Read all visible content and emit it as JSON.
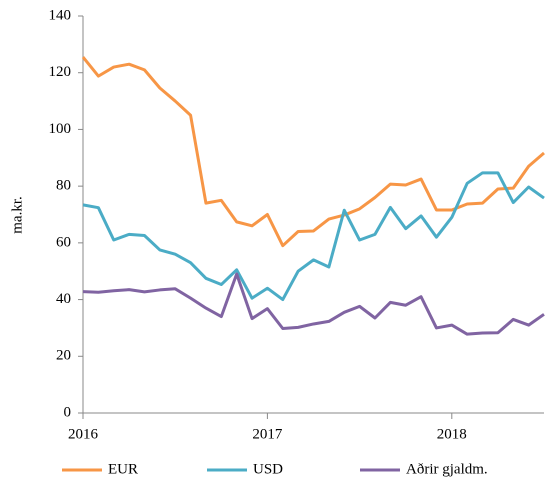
{
  "chart_data": {
    "type": "line",
    "y_label": "ma.kr.",
    "categories": [
      "2016",
      null,
      null,
      null,
      null,
      null,
      null,
      null,
      null,
      null,
      null,
      null,
      "2017",
      null,
      null,
      null,
      null,
      null,
      null,
      null,
      null,
      null,
      null,
      null,
      "2018",
      null,
      null,
      null,
      null,
      null,
      null
    ],
    "series": [
      {
        "name": "EUR",
        "color": "#f79646",
        "values": [
          125.5,
          118.8,
          122,
          123,
          121,
          114.6,
          110,
          105,
          74,
          75,
          67.4,
          66,
          70,
          59,
          64,
          64.2,
          68.4,
          69.8,
          72,
          76,
          80.7,
          80.4,
          82.5,
          71.6,
          71.6,
          73.7,
          74,
          79,
          79.3,
          87,
          91.7
        ]
      },
      {
        "name": "USD",
        "color": "#4bacc6",
        "values": [
          73.4,
          72.4,
          61,
          63,
          62.6,
          57.5,
          56,
          53,
          47.5,
          45.3,
          50.5,
          40.5,
          44,
          40,
          50,
          54,
          51.5,
          71.5,
          61,
          63,
          72.5,
          65,
          69.5,
          62,
          69,
          81,
          84.7,
          84.7,
          74.2,
          79.7,
          75.8
        ]
      },
      {
        "name": "Aðrir gjaldm.",
        "color": "#8064a2",
        "values": [
          42.8,
          42.6,
          43.1,
          43.5,
          42.7,
          43.4,
          43.8,
          40.5,
          37,
          34,
          49,
          33.3,
          36.8,
          29.8,
          30.2,
          31.4,
          32.3,
          35.5,
          37.6,
          33.5,
          39,
          38,
          41,
          30,
          31,
          27.8,
          28.2,
          28.3,
          33,
          31,
          34.8
        ]
      }
    ],
    "ylim": [
      0,
      140
    ],
    "yticks": [
      0,
      20,
      40,
      60,
      80,
      100,
      120,
      140
    ],
    "grid": false
  }
}
